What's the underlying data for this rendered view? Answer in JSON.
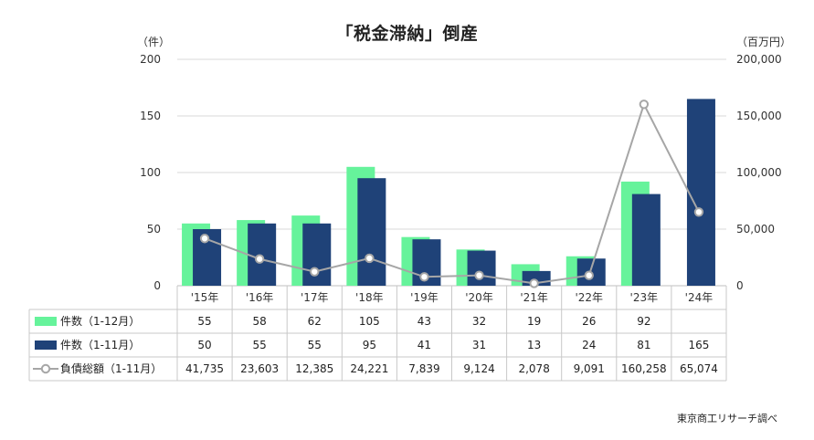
{
  "title": "「税金滞納」倒産",
  "unit_left": "（件）",
  "unit_right": "（百万円）",
  "source": "東京商工リサーチ調べ",
  "colors": {
    "light": "#66f39b",
    "dark": "#1f4278",
    "line": "#a6a6a6",
    "grid": "#d9d9d9"
  },
  "chart_data": {
    "type": "bar",
    "categories": [
      "'15年",
      "'16年",
      "'17年",
      "'18年",
      "'19年",
      "'20年",
      "'21年",
      "'22年",
      "'23年",
      "'24年"
    ],
    "left_axis": {
      "min": 0,
      "max": 200,
      "ticks": [
        0,
        50,
        100,
        150,
        200
      ],
      "tick_labels": [
        "0",
        "50",
        "100",
        "150",
        "200"
      ]
    },
    "right_axis": {
      "min": 0,
      "max": 200000,
      "ticks": [
        0,
        50000,
        100000,
        150000,
        200000
      ],
      "tick_labels": [
        "0",
        "50,000",
        "100,000",
        "150,000",
        "200,000"
      ]
    },
    "grid": true,
    "series": [
      {
        "name": "件数（1-12月）",
        "kind": "bar",
        "axis": "left",
        "color": "#66f39b",
        "values": [
          55,
          58,
          62,
          105,
          43,
          32,
          19,
          26,
          92,
          null
        ],
        "labels": [
          "55",
          "58",
          "62",
          "105",
          "43",
          "32",
          "19",
          "26",
          "92",
          ""
        ]
      },
      {
        "name": "件数（1-11月）",
        "kind": "bar",
        "axis": "left",
        "color": "#1f4278",
        "values": [
          50,
          55,
          55,
          95,
          41,
          31,
          13,
          24,
          81,
          165
        ],
        "labels": [
          "50",
          "55",
          "55",
          "95",
          "41",
          "31",
          "13",
          "24",
          "81",
          "165"
        ]
      },
      {
        "name": "負債総額（1-11月）",
        "kind": "line",
        "axis": "right",
        "color": "#a6a6a6",
        "values": [
          41735,
          23603,
          12385,
          24221,
          7839,
          9124,
          2078,
          9091,
          160258,
          65074
        ],
        "labels": [
          "41,735",
          "23,603",
          "12,385",
          "24,221",
          "7,839",
          "9,124",
          "2,078",
          "9,091",
          "160,258",
          "65,074"
        ]
      }
    ]
  }
}
